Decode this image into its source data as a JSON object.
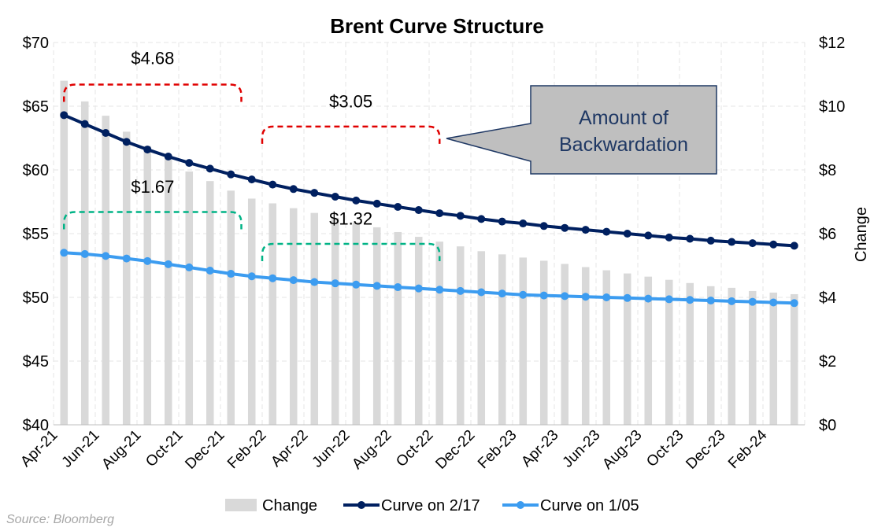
{
  "chart_data": {
    "type": "bar+line",
    "title": "Brent Curve Structure",
    "xlabel": "",
    "ylabel": "",
    "y2label": "Change",
    "ylim": [
      40,
      70
    ],
    "y2lim": [
      0,
      12
    ],
    "yticks": [
      "$40",
      "$45",
      "$50",
      "$55",
      "$60",
      "$65",
      "$70"
    ],
    "y2ticks": [
      "$0",
      "$2",
      "$4",
      "$6",
      "$8",
      "$10",
      "$12"
    ],
    "xtick_labels": [
      "Apr-21",
      "Jun-21",
      "Aug-21",
      "Oct-21",
      "Dec-21",
      "Feb-22",
      "Apr-22",
      "Jun-22",
      "Aug-22",
      "Oct-22",
      "Dec-22",
      "Feb-23",
      "Apr-23",
      "Jun-23",
      "Aug-23",
      "Oct-23",
      "Dec-23",
      "Feb-24"
    ],
    "grid": true,
    "legend_position": "bottom",
    "series": [
      {
        "name": "Change",
        "type": "bar",
        "axis": "right",
        "color": "#d9d9d9",
        "values": [
          10.8,
          10.15,
          9.7,
          9.2,
          8.75,
          8.35,
          7.95,
          7.65,
          7.35,
          7.1,
          6.95,
          6.8,
          6.65,
          6.5,
          6.35,
          6.2,
          6.05,
          5.9,
          5.75,
          5.6,
          5.45,
          5.35,
          5.25,
          5.15,
          5.05,
          4.95,
          4.85,
          4.75,
          4.65,
          4.55,
          4.45,
          4.35,
          4.3,
          4.2,
          4.15,
          4.1
        ]
      },
      {
        "name": "Curve on 2/17",
        "type": "line",
        "axis": "left",
        "color": "#002060",
        "values": [
          64.3,
          63.6,
          62.9,
          62.2,
          61.6,
          61.05,
          60.55,
          60.1,
          59.65,
          59.25,
          58.85,
          58.5,
          58.2,
          57.9,
          57.6,
          57.35,
          57.1,
          56.85,
          56.6,
          56.4,
          56.15,
          55.95,
          55.8,
          55.6,
          55.45,
          55.3,
          55.15,
          55.0,
          54.85,
          54.7,
          54.6,
          54.45,
          54.35,
          54.25,
          54.15,
          54.05
        ]
      },
      {
        "name": "Curve on 1/05",
        "type": "line",
        "axis": "left",
        "color": "#3c9cf0",
        "values": [
          53.5,
          53.4,
          53.25,
          53.05,
          52.85,
          52.6,
          52.35,
          52.1,
          51.85,
          51.65,
          51.5,
          51.35,
          51.2,
          51.1,
          51.0,
          50.9,
          50.8,
          50.7,
          50.6,
          50.5,
          50.4,
          50.3,
          50.2,
          50.15,
          50.1,
          50.05,
          50.0,
          49.95,
          49.9,
          49.85,
          49.8,
          49.75,
          49.7,
          49.65,
          49.6,
          49.55
        ]
      }
    ],
    "annotations": {
      "brackets": [
        {
          "label": "$4.68",
          "from": 0,
          "to": 8.5,
          "level": 66.7,
          "label_level": 68.3,
          "color": "#e00000"
        },
        {
          "label": "$3.05",
          "from": 9.5,
          "to": 18,
          "level": 63.4,
          "label_level": 64.9,
          "color": "#e00000"
        },
        {
          "label": "$1.67",
          "from": 0,
          "to": 8.5,
          "level": 56.7,
          "label_level": 58.2,
          "color": "#00b386"
        },
        {
          "label": "$1.32",
          "from": 9.5,
          "to": 18,
          "level": 54.2,
          "label_level": 55.7,
          "color": "#00b386"
        }
      ],
      "callout": {
        "lines": [
          "Amount of",
          "Backwardation"
        ],
        "fill": "#bfbfbf",
        "border": "#1f3864",
        "text_color": "#1f3864"
      }
    },
    "source": "Source: Bloomberg"
  }
}
